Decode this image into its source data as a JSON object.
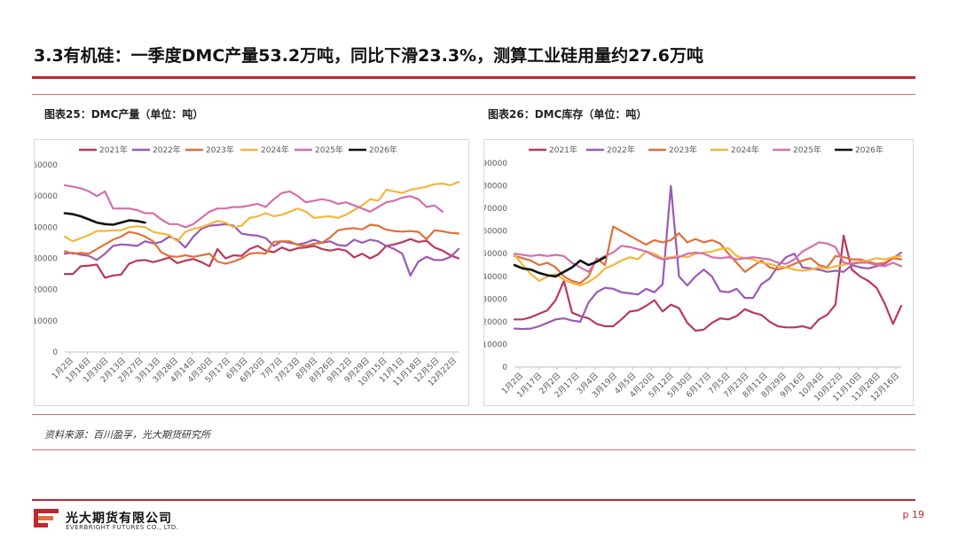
{
  "header": {
    "title": "3.3有机硅：一季度DMC产量53.2万吨，同比下滑23.3%，测算工业硅用量约27.6万吨"
  },
  "captions": {
    "left": "图表25：DMC产量（单位：吨）",
    "right": "图表26：DMC库存（单位：吨）"
  },
  "footer": {
    "source": "资料来源：百川盈孚，光大期货研究所",
    "company_cn": "光大期货有限公司",
    "company_en": "EVERBRIGHT FUTURES CO., LTD.",
    "page": "p 19"
  },
  "colors": {
    "accent": "#c0262d"
  },
  "chart_data": [
    {
      "type": "line",
      "title": "",
      "xlabel": "",
      "ylabel": "",
      "ylim": [
        0,
        60000
      ],
      "yticks": [
        0,
        10000,
        20000,
        30000,
        40000,
        50000,
        60000
      ],
      "grid": false,
      "legend": "top",
      "x_tick_labels": [
        "1月2日",
        "1月16日",
        "1月30日",
        "2月13日",
        "2月27日",
        "3月13日",
        "3月28日",
        "4月14日",
        "4月30日",
        "5月17日",
        "6月3日",
        "6月20日",
        "7月7日",
        "7月23日",
        "8月9日",
        "8月26日",
        "9月12日",
        "9月29日",
        "10月15日",
        "11月1日",
        "11月18日",
        "12月5日",
        "12月22日"
      ],
      "series": [
        {
          "name": "2021年",
          "color": "#b83a5a",
          "values": [
            25000,
            25000,
            27500,
            27700,
            28000,
            23800,
            24500,
            24800,
            28300,
            29300,
            29500,
            28800,
            29500,
            30300,
            28500,
            29300,
            29800,
            28800,
            27500,
            33000,
            30000,
            31000,
            30800,
            33000,
            34000,
            32500,
            32000,
            33500,
            32500,
            33300,
            33500,
            34000,
            33000,
            32500,
            33000,
            32500,
            30300,
            31500,
            30000,
            31300,
            34000,
            34500,
            35200,
            36200,
            35300,
            35700,
            33500,
            32500,
            31000,
            30000
          ]
        },
        {
          "name": "2022年",
          "color": "#9b59b6",
          "values": [
            31500,
            31800,
            31200,
            30800,
            29500,
            31500,
            34000,
            34500,
            34300,
            34000,
            35500,
            34800,
            35300,
            37000,
            36000,
            33500,
            37000,
            39500,
            40500,
            40700,
            41000,
            40500,
            38000,
            37500,
            37300,
            36500,
            34000,
            35500,
            35000,
            34500,
            35000,
            36000,
            35000,
            35500,
            34300,
            34000,
            36000,
            35000,
            36000,
            35500,
            34000,
            33000,
            31500,
            24500,
            29000,
            30500,
            29500,
            29500,
            30500,
            33000
          ]
        },
        {
          "name": "2023年",
          "color": "#e0703a",
          "values": [
            32300,
            31500,
            31800,
            31500,
            33000,
            34500,
            36000,
            37000,
            38500,
            38000,
            37000,
            35500,
            32000,
            30700,
            30500,
            31000,
            30500,
            31000,
            31500,
            29000,
            28300,
            29000,
            30000,
            31500,
            31800,
            31500,
            35300,
            35500,
            35500,
            34300,
            34000,
            34700,
            35000,
            36700,
            39000,
            39500,
            39700,
            39300,
            40800,
            40500,
            39200,
            38800,
            38600,
            38800,
            38500,
            36200,
            39000,
            38700,
            38200,
            38000
          ]
        },
        {
          "name": "2024年",
          "color": "#f3b73c",
          "values": [
            37000,
            35500,
            36500,
            37500,
            38800,
            38800,
            39000,
            39000,
            40000,
            40300,
            40000,
            38500,
            38000,
            37500,
            35500,
            38500,
            39500,
            40000,
            41000,
            42000,
            41500,
            40000,
            40500,
            43000,
            43500,
            44500,
            43500,
            44000,
            45000,
            46000,
            45000,
            43000,
            43300,
            43500,
            43000,
            44000,
            45500,
            47000,
            49000,
            48500,
            52000,
            51500,
            51000,
            52000,
            52500,
            53000,
            53800,
            54000,
            53500,
            54500
          ]
        },
        {
          "name": "2025年",
          "color": "#d46fae",
          "values": [
            53500,
            53000,
            52500,
            51500,
            50000,
            51500,
            46000,
            46000,
            46000,
            45500,
            44500,
            44500,
            42500,
            41000,
            41000,
            40000,
            41000,
            43000,
            45000,
            46000,
            46000,
            46500,
            46500,
            47000,
            47500,
            46500,
            49000,
            51000,
            51500,
            50000,
            48000,
            48500,
            49000,
            48500,
            47500,
            48000,
            47000,
            46000,
            45000,
            46500,
            48000,
            48500,
            49500,
            50000,
            49000,
            46500,
            47000,
            45000
          ]
        },
        {
          "name": "2026年",
          "color": "#111111",
          "values": [
            44500,
            44200,
            43500,
            42500,
            41500,
            41000,
            40800,
            41500,
            42200,
            42000,
            41500
          ]
        }
      ]
    },
    {
      "type": "line",
      "title": "",
      "xlabel": "",
      "ylabel": "",
      "ylim": [
        0,
        90000
      ],
      "yticks": [
        0,
        10000,
        20000,
        30000,
        40000,
        50000,
        60000,
        70000,
        80000,
        90000
      ],
      "grid": false,
      "legend": "top",
      "x_tick_labels": [
        "1月2日",
        "1月17日",
        "2月2日",
        "2月17日",
        "3月4日",
        "3月19日",
        "4月5日",
        "4月20日",
        "5月12日",
        "5月30日",
        "6月17日",
        "7月5日",
        "7月23日",
        "8月11日",
        "8月29日",
        "9月16日",
        "10月4日",
        "10月22日",
        "11月10日",
        "11月28日",
        "12月16日"
      ],
      "series": [
        {
          "name": "2021年",
          "color": "#b83a5a",
          "values": [
            21000,
            21000,
            22000,
            23500,
            25000,
            29500,
            38000,
            24000,
            22500,
            21500,
            19000,
            18000,
            18000,
            21000,
            24500,
            25000,
            27000,
            29500,
            24500,
            27500,
            26000,
            19500,
            16000,
            16500,
            19500,
            21500,
            21000,
            22500,
            25500,
            24000,
            23000,
            20000,
            18000,
            17500,
            17500,
            18000,
            17000,
            21000,
            23000,
            27500,
            58000,
            43000,
            40000,
            38000,
            35000,
            28000,
            19000,
            27000
          ]
        },
        {
          "name": "2022年",
          "color": "#9b59b6",
          "values": [
            17000,
            16800,
            17000,
            18000,
            19500,
            21000,
            21500,
            20500,
            20000,
            28500,
            33000,
            35000,
            34500,
            33000,
            32500,
            32000,
            34500,
            33000,
            36500,
            80000,
            40000,
            36000,
            40000,
            43000,
            40000,
            33500,
            33000,
            34500,
            30500,
            30500,
            36500,
            39000,
            44500,
            48500,
            50000,
            44000,
            43500,
            43000,
            42000,
            42500,
            42000,
            45000,
            44000,
            43500,
            44500,
            45500,
            48000,
            50500
          ]
        },
        {
          "name": "2023年",
          "color": "#e0703a",
          "values": [
            49000,
            48000,
            47000,
            45000,
            46000,
            44000,
            40000,
            38000,
            37000,
            40000,
            48000,
            45000,
            62000,
            60000,
            58000,
            56000,
            54000,
            56000,
            55000,
            56000,
            59000,
            55000,
            56500,
            55000,
            56000,
            54500,
            50000,
            46000,
            42000,
            44500,
            47000,
            44000,
            43000,
            44000,
            45500,
            47000,
            48000,
            45000,
            44000,
            49000,
            48500,
            47500,
            47500,
            46500,
            45500,
            46000,
            48000,
            47500
          ]
        },
        {
          "name": "2024年",
          "color": "#f3b73c",
          "values": [
            49500,
            45000,
            41000,
            38000,
            40000,
            41000,
            38500,
            37000,
            36000,
            37500,
            40000,
            43500,
            45000,
            47000,
            48500,
            47500,
            51000,
            50000,
            48000,
            48500,
            49000,
            48500,
            50000,
            50500,
            51000,
            52000,
            52500,
            49000,
            48000,
            47500,
            46000,
            45500,
            44500,
            44000,
            43000,
            42500,
            43000,
            44000,
            43500,
            44500,
            45000,
            46000,
            46500,
            47000,
            48000,
            47500,
            48500,
            49000
          ]
        },
        {
          "name": "2025年",
          "color": "#d46fae",
          "values": [
            50000,
            49500,
            49000,
            49500,
            49000,
            49500,
            49000,
            46000,
            44000,
            42000,
            47000,
            49000,
            50500,
            53500,
            53000,
            52000,
            51000,
            49000,
            47500,
            48000,
            48500,
            50000,
            50500,
            50000,
            48500,
            48000,
            48500,
            47500,
            48000,
            48500,
            48000,
            47500,
            46000,
            45500,
            47500,
            51000,
            53000,
            55000,
            54500,
            53000,
            46000,
            45500,
            46000,
            46000,
            45000,
            44500,
            46000,
            44500
          ]
        },
        {
          "name": "2026年",
          "color": "#111111",
          "values": [
            45000,
            43500,
            43000,
            41500,
            40500,
            40000,
            42000,
            44000,
            47000,
            45000,
            46500,
            48500
          ]
        }
      ]
    }
  ]
}
